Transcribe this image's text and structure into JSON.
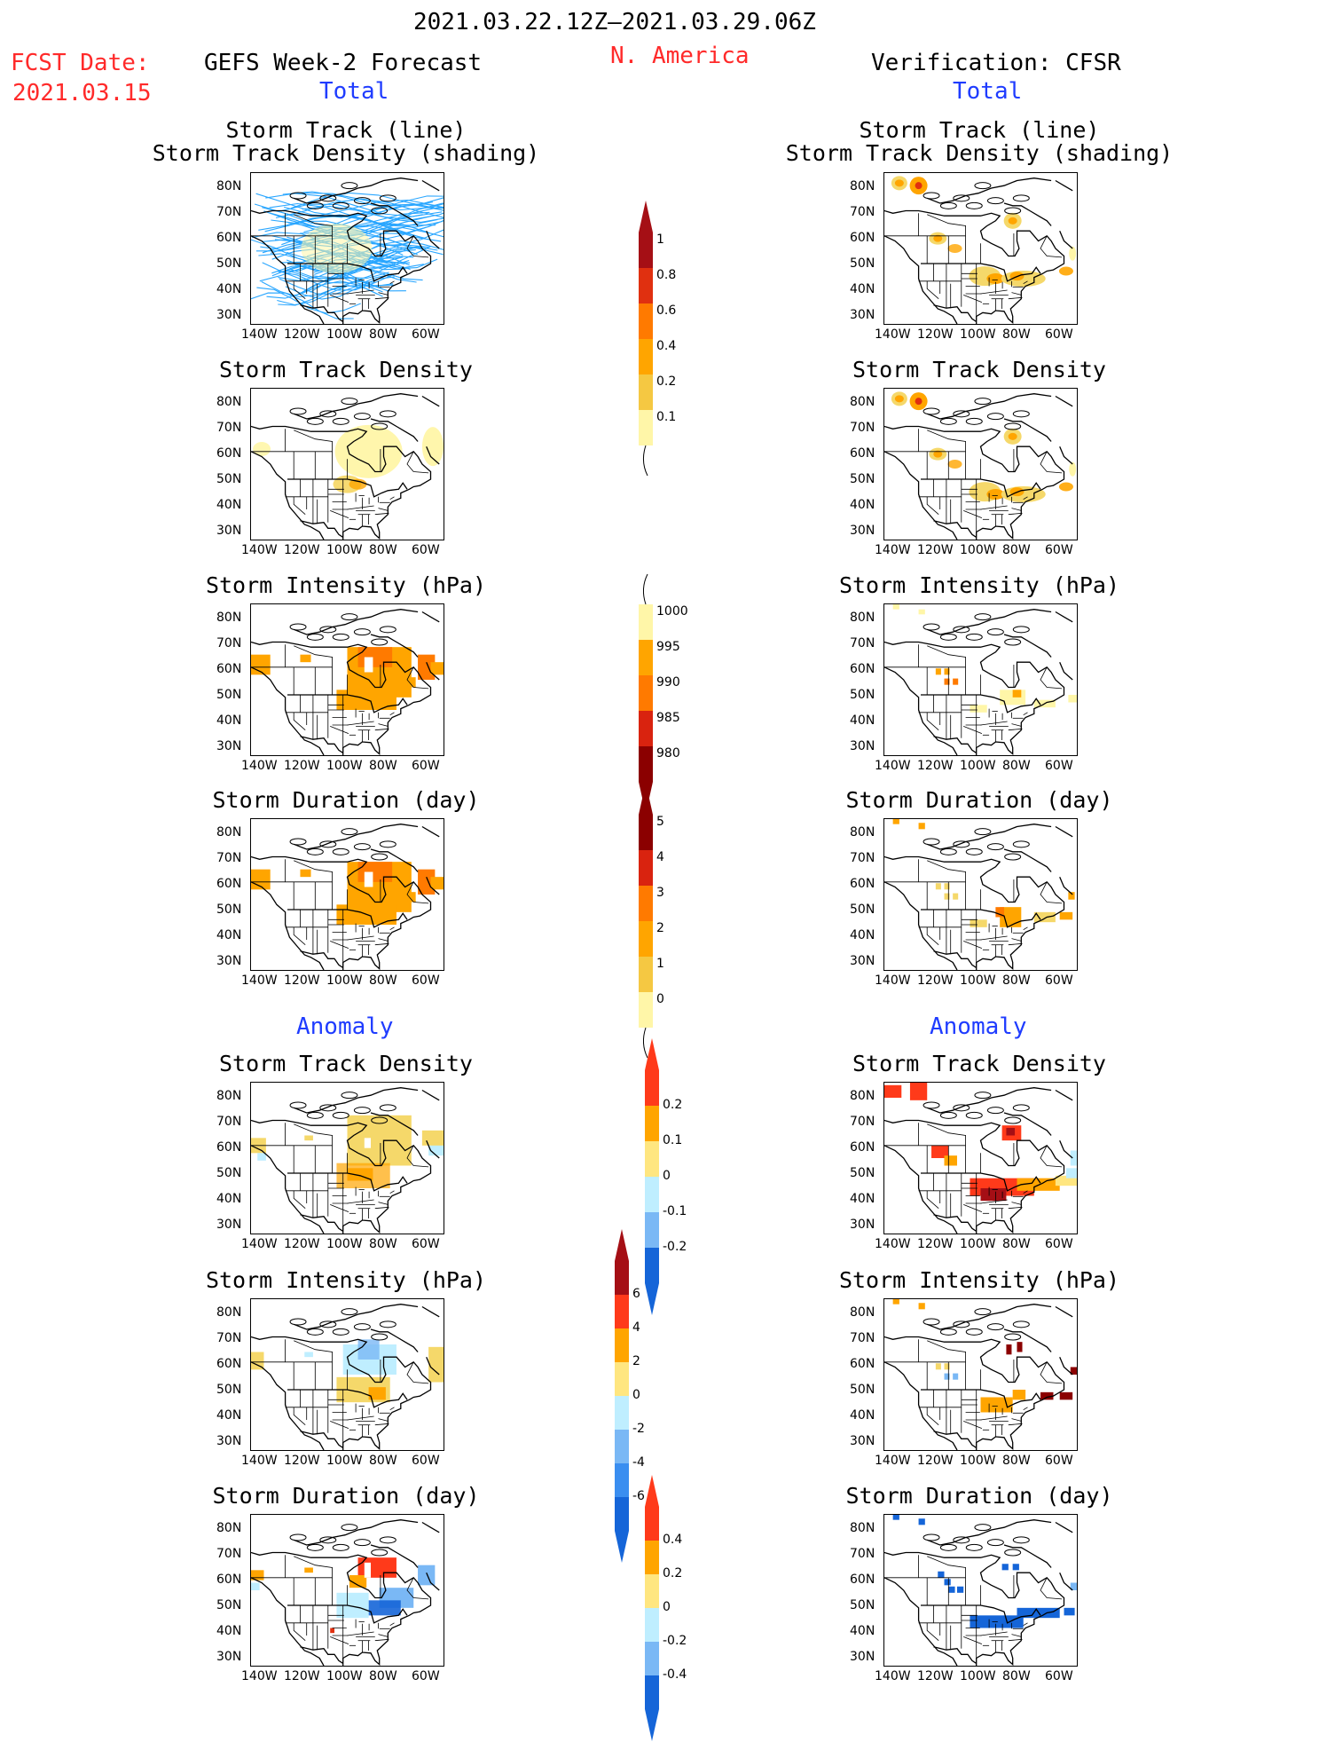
{
  "header": {
    "date_range": "2021.03.22.12Z–2021.03.29.06Z",
    "region": "N. America",
    "fcst_label": "FCST Date:",
    "fcst_date": "2021.03.15",
    "left_title": "GEFS Week-2 Forecast",
    "right_title": "Verification: CFSR",
    "total_label": "Total",
    "anomaly_label": "Anomaly"
  },
  "axes": {
    "lat_ticks": [
      "80N",
      "70N",
      "60N",
      "50N",
      "40N",
      "30N"
    ],
    "lon_ticks": [
      "140W",
      "120W",
      "100W",
      "80W",
      "60W"
    ]
  },
  "panel_titles": {
    "track_line": "Storm Track (line)",
    "track_shading": "Storm Track Density (shading)",
    "density": "Storm Track Density",
    "intensity": "Storm Intensity (hPa)",
    "duration": "Storm Duration (day)"
  },
  "chart_data": [
    {
      "type": "heatmap",
      "panel": "forecast-total-track",
      "title": "Storm Track (line) / Storm Track Density (shading)",
      "xlabel": "",
      "ylabel": "",
      "xlim": [
        -140,
        -50
      ],
      "ylim": [
        25,
        85
      ]
    },
    {
      "type": "heatmap",
      "panel": "verification-total-track",
      "title": "Storm Track (line) / Storm Track Density (shading)",
      "xlim": [
        -140,
        -50
      ],
      "ylim": [
        25,
        85
      ]
    },
    {
      "type": "heatmap",
      "panel": "forecast-total-density",
      "title": "Storm Track Density",
      "xlim": [
        -140,
        -50
      ],
      "ylim": [
        25,
        85
      ]
    },
    {
      "type": "heatmap",
      "panel": "verification-total-density",
      "title": "Storm Track Density",
      "xlim": [
        -140,
        -50
      ],
      "ylim": [
        25,
        85
      ]
    },
    {
      "type": "heatmap",
      "panel": "forecast-total-intensity",
      "title": "Storm Intensity (hPa)",
      "xlim": [
        -140,
        -50
      ],
      "ylim": [
        25,
        85
      ]
    },
    {
      "type": "heatmap",
      "panel": "verification-total-intensity",
      "title": "Storm Intensity (hPa)",
      "xlim": [
        -140,
        -50
      ],
      "ylim": [
        25,
        85
      ]
    },
    {
      "type": "heatmap",
      "panel": "forecast-total-duration",
      "title": "Storm Duration (day)",
      "xlim": [
        -140,
        -50
      ],
      "ylim": [
        25,
        85
      ]
    },
    {
      "type": "heatmap",
      "panel": "verification-total-duration",
      "title": "Storm Duration (day)",
      "xlim": [
        -140,
        -50
      ],
      "ylim": [
        25,
        85
      ]
    },
    {
      "type": "heatmap",
      "panel": "forecast-anomaly-density",
      "title": "Storm Track Density",
      "xlim": [
        -140,
        -50
      ],
      "ylim": [
        25,
        85
      ]
    },
    {
      "type": "heatmap",
      "panel": "verification-anomaly-density",
      "title": "Storm Track Density",
      "xlim": [
        -140,
        -50
      ],
      "ylim": [
        25,
        85
      ]
    },
    {
      "type": "heatmap",
      "panel": "forecast-anomaly-intensity",
      "title": "Storm Intensity (hPa)",
      "xlim": [
        -140,
        -50
      ],
      "ylim": [
        25,
        85
      ]
    },
    {
      "type": "heatmap",
      "panel": "verification-anomaly-intensity",
      "title": "Storm Intensity (hPa)",
      "xlim": [
        -140,
        -50
      ],
      "ylim": [
        25,
        85
      ]
    },
    {
      "type": "heatmap",
      "panel": "forecast-anomaly-duration",
      "title": "Storm Duration (day)",
      "xlim": [
        -140,
        -50
      ],
      "ylim": [
        25,
        85
      ]
    },
    {
      "type": "heatmap",
      "panel": "verification-anomaly-duration",
      "title": "Storm Duration (day)",
      "xlim": [
        -140,
        -50
      ],
      "ylim": [
        25,
        85
      ]
    }
  ],
  "colorbars": {
    "density_total": {
      "labels": [
        "1",
        "0.8",
        "0.6",
        "0.4",
        "0.2",
        "0.1"
      ],
      "colors": [
        "#a50f15",
        "#e03010",
        "#ff7a00",
        "#ffa500",
        "#f5c842",
        "#fff6a8"
      ]
    },
    "intensity_total": {
      "labels": [
        "1000",
        "995",
        "990",
        "985",
        "980"
      ],
      "colors": [
        "#fff6a8",
        "#ffa500",
        "#ff7a00",
        "#d9230f",
        "#8b0000"
      ]
    },
    "duration_total": {
      "labels": [
        "5",
        "4",
        "3",
        "2",
        "1",
        "0"
      ],
      "colors": [
        "#8b0000",
        "#d9230f",
        "#ff7a00",
        "#ffa500",
        "#f5c842",
        "#fff6a8"
      ]
    },
    "density_anom": {
      "labels": [
        "0.2",
        "0.1",
        "0",
        "-0.1",
        "-0.2"
      ],
      "colors": [
        "#ff3a1a",
        "#ffa500",
        "#ffe680",
        "#bfeeff",
        "#7ab8f5",
        "#1565d8"
      ]
    },
    "intensity_anom": {
      "labels": [
        "6",
        "4",
        "2",
        "0",
        "-2",
        "-4",
        "-6"
      ],
      "colors": [
        "#a50f15",
        "#ff3a1a",
        "#ffa500",
        "#ffe680",
        "#bfeeff",
        "#7ab8f5",
        "#3a8ef0",
        "#1565d8"
      ]
    },
    "duration_anom": {
      "labels": [
        "0.4",
        "0.2",
        "0",
        "-0.2",
        "-0.4"
      ],
      "colors": [
        "#ff3a1a",
        "#ffa500",
        "#ffe680",
        "#bfeeff",
        "#7ab8f5",
        "#1565d8"
      ]
    }
  }
}
